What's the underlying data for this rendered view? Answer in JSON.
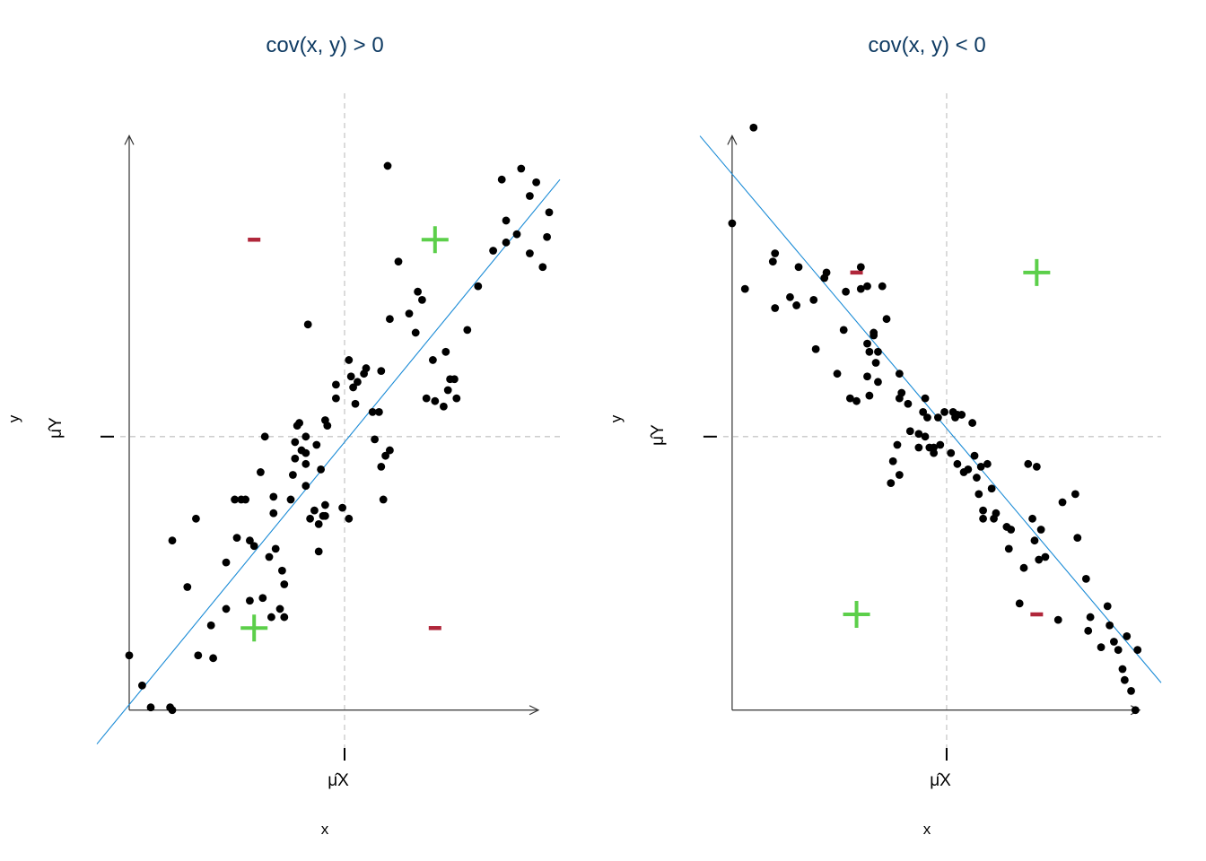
{
  "colors": {
    "title": "#0f3b63",
    "points": "#000000",
    "fit_line": "#1a8bd6",
    "guides": "#c8c8c8",
    "plus": "#5ccf4a",
    "minus": "#b0263a"
  },
  "chart_data": [
    {
      "type": "scatter",
      "title": "cov(x, y) > 0",
      "xlabel": "x",
      "ylabel": "y",
      "x_tick_label": "μ̂X",
      "y_tick_label": "μ̂Y",
      "xlim": [
        -0.1,
        2.0
      ],
      "ylim": [
        -0.05,
        2.18
      ],
      "x_mean": 1.0,
      "y_mean": 1.0,
      "grid": false,
      "fit_line": {
        "intercept": 0.02,
        "slope": 0.96
      },
      "quadrant_signs": {
        "upper_left": "-",
        "upper_right": "+",
        "lower_left": "+",
        "lower_right": "-"
      },
      "points": [
        [
          0.0,
          0.2
        ],
        [
          0.06,
          0.09
        ],
        [
          0.1,
          0.01
        ],
        [
          0.19,
          0.01
        ],
        [
          0.2,
          0.0
        ],
        [
          0.2,
          0.62
        ],
        [
          0.27,
          0.45
        ],
        [
          0.31,
          0.7
        ],
        [
          0.32,
          0.2
        ],
        [
          0.38,
          0.31
        ],
        [
          0.39,
          0.19
        ],
        [
          0.45,
          0.37
        ],
        [
          0.45,
          0.54
        ],
        [
          0.49,
          0.77
        ],
        [
          0.5,
          0.63
        ],
        [
          0.52,
          0.77
        ],
        [
          0.54,
          0.77
        ],
        [
          0.56,
          0.4
        ],
        [
          0.56,
          0.62
        ],
        [
          0.58,
          0.6
        ],
        [
          0.61,
          0.87
        ],
        [
          0.62,
          0.41
        ],
        [
          0.63,
          1.0
        ],
        [
          0.65,
          0.56
        ],
        [
          0.66,
          0.34
        ],
        [
          0.67,
          0.72
        ],
        [
          0.67,
          0.78
        ],
        [
          0.68,
          0.59
        ],
        [
          0.71,
          0.51
        ],
        [
          0.72,
          0.46
        ],
        [
          0.7,
          0.37
        ],
        [
          0.72,
          0.34
        ],
        [
          0.75,
          0.77
        ],
        [
          0.76,
          0.86
        ],
        [
          0.77,
          0.92
        ],
        [
          0.77,
          0.98
        ],
        [
          0.78,
          1.04
        ],
        [
          0.79,
          1.05
        ],
        [
          0.8,
          0.95
        ],
        [
          0.82,
          1.0
        ],
        [
          0.82,
          0.82
        ],
        [
          0.82,
          0.94
        ],
        [
          0.82,
          0.9
        ],
        [
          0.83,
          1.41
        ],
        [
          0.84,
          0.7
        ],
        [
          0.86,
          0.73
        ],
        [
          0.87,
          0.97
        ],
        [
          0.88,
          0.58
        ],
        [
          0.88,
          0.68
        ],
        [
          0.91,
          0.75
        ],
        [
          0.9,
          0.71
        ],
        [
          0.91,
          0.71
        ],
        [
          0.89,
          0.88
        ],
        [
          0.91,
          1.06
        ],
        [
          0.92,
          1.04
        ],
        [
          0.96,
          1.14
        ],
        [
          0.96,
          1.19
        ],
        [
          0.99,
          0.74
        ],
        [
          1.02,
          0.7
        ],
        [
          1.02,
          1.28
        ],
        [
          1.03,
          1.22
        ],
        [
          1.04,
          1.18
        ],
        [
          1.05,
          1.12
        ],
        [
          1.06,
          1.2
        ],
        [
          1.09,
          1.23
        ],
        [
          1.1,
          1.25
        ],
        [
          1.13,
          1.09
        ],
        [
          1.14,
          0.99
        ],
        [
          1.16,
          1.09
        ],
        [
          1.17,
          1.24
        ],
        [
          1.17,
          0.89
        ],
        [
          1.18,
          0.77
        ],
        [
          1.19,
          0.93
        ],
        [
          1.2,
          1.99
        ],
        [
          1.21,
          1.43
        ],
        [
          1.21,
          0.95
        ],
        [
          1.25,
          1.64
        ],
        [
          1.3,
          1.45
        ],
        [
          1.33,
          1.38
        ],
        [
          1.36,
          1.5
        ],
        [
          1.34,
          1.53
        ],
        [
          1.38,
          1.14
        ],
        [
          1.41,
          1.28
        ],
        [
          1.42,
          1.13
        ],
        [
          1.46,
          1.11
        ],
        [
          1.47,
          1.31
        ],
        [
          1.48,
          1.17
        ],
        [
          1.49,
          1.21
        ],
        [
          1.51,
          1.21
        ],
        [
          1.52,
          1.14
        ],
        [
          1.57,
          1.39
        ],
        [
          1.62,
          1.55
        ],
        [
          1.69,
          1.68
        ],
        [
          1.75,
          1.71
        ],
        [
          1.73,
          1.94
        ],
        [
          1.75,
          1.79
        ],
        [
          1.8,
          1.74
        ],
        [
          1.82,
          1.98
        ],
        [
          1.86,
          1.67
        ],
        [
          1.86,
          1.88
        ],
        [
          1.89,
          1.93
        ],
        [
          1.92,
          1.62
        ],
        [
          1.94,
          1.73
        ],
        [
          1.95,
          1.82
        ]
      ]
    },
    {
      "type": "scatter",
      "title": "cov(x, y) < 0",
      "xlabel": "x",
      "ylabel": "y",
      "x_tick_label": "μ̂X",
      "y_tick_label": "μ̂Y",
      "xlim": [
        -0.1,
        2.0
      ],
      "ylim": [
        -0.05,
        2.18
      ],
      "x_mean": 1.0,
      "y_mean": 1.0,
      "grid": false,
      "fit_line": {
        "intercept": 1.96,
        "slope": -0.93
      },
      "quadrant_signs": {
        "upper_left": "-",
        "upper_right": "+",
        "lower_left": "+",
        "lower_right": "-"
      },
      "points": [
        [
          0.0,
          1.78
        ],
        [
          0.06,
          1.54
        ],
        [
          0.1,
          2.13
        ],
        [
          0.19,
          1.64
        ],
        [
          0.2,
          1.67
        ],
        [
          0.2,
          1.47
        ],
        [
          0.27,
          1.51
        ],
        [
          0.31,
          1.62
        ],
        [
          0.3,
          1.48
        ],
        [
          0.38,
          1.5
        ],
        [
          0.39,
          1.32
        ],
        [
          0.43,
          1.58
        ],
        [
          0.44,
          1.6
        ],
        [
          0.49,
          1.23
        ],
        [
          0.53,
          1.53
        ],
        [
          0.52,
          1.39
        ],
        [
          0.55,
          1.14
        ],
        [
          0.58,
          1.13
        ],
        [
          0.6,
          1.54
        ],
        [
          0.6,
          1.62
        ],
        [
          0.63,
          1.55
        ],
        [
          0.63,
          1.34
        ],
        [
          0.63,
          1.22
        ],
        [
          0.64,
          1.31
        ],
        [
          0.64,
          1.15
        ],
        [
          0.66,
          1.37
        ],
        [
          0.66,
          1.38
        ],
        [
          0.67,
          1.27
        ],
        [
          0.68,
          1.2
        ],
        [
          0.68,
          1.31
        ],
        [
          0.7,
          1.55
        ],
        [
          0.72,
          1.43
        ],
        [
          0.74,
          0.83
        ],
        [
          0.75,
          0.91
        ],
        [
          0.77,
          0.97
        ],
        [
          0.78,
          0.86
        ],
        [
          0.78,
          1.14
        ],
        [
          0.79,
          1.16
        ],
        [
          0.78,
          1.23
        ],
        [
          0.82,
          1.12
        ],
        [
          0.83,
          1.02
        ],
        [
          0.87,
          1.01
        ],
        [
          0.87,
          0.96
        ],
        [
          0.89,
          1.09
        ],
        [
          0.9,
          1.14
        ],
        [
          0.9,
          1.0
        ],
        [
          0.91,
          1.07
        ],
        [
          0.92,
          0.96
        ],
        [
          0.94,
          0.96
        ],
        [
          0.94,
          0.94
        ],
        [
          0.96,
          1.07
        ],
        [
          0.97,
          0.97
        ],
        [
          0.99,
          1.09
        ],
        [
          1.02,
          0.94
        ],
        [
          1.03,
          1.09
        ],
        [
          1.04,
          1.07
        ],
        [
          1.05,
          1.08
        ],
        [
          1.05,
          0.9
        ],
        [
          1.07,
          1.08
        ],
        [
          1.08,
          0.87
        ],
        [
          1.1,
          0.88
        ],
        [
          1.12,
          1.05
        ],
        [
          1.13,
          0.93
        ],
        [
          1.14,
          0.85
        ],
        [
          1.15,
          0.79
        ],
        [
          1.16,
          0.89
        ],
        [
          1.17,
          0.7
        ],
        [
          1.17,
          0.73
        ],
        [
          1.19,
          0.9
        ],
        [
          1.21,
          0.81
        ],
        [
          1.22,
          0.7
        ],
        [
          1.23,
          0.72
        ],
        [
          1.28,
          0.67
        ],
        [
          1.29,
          0.59
        ],
        [
          1.3,
          0.66
        ],
        [
          1.34,
          0.39
        ],
        [
          1.36,
          0.52
        ],
        [
          1.38,
          0.9
        ],
        [
          1.4,
          0.7
        ],
        [
          1.41,
          0.62
        ],
        [
          1.42,
          0.89
        ],
        [
          1.43,
          0.55
        ],
        [
          1.44,
          0.66
        ],
        [
          1.46,
          0.56
        ],
        [
          1.52,
          0.33
        ],
        [
          1.54,
          0.76
        ],
        [
          1.6,
          0.79
        ],
        [
          1.61,
          0.63
        ],
        [
          1.65,
          0.48
        ],
        [
          1.66,
          0.29
        ],
        [
          1.67,
          0.34
        ],
        [
          1.72,
          0.23
        ],
        [
          1.75,
          0.38
        ],
        [
          1.76,
          0.31
        ],
        [
          1.78,
          0.25
        ],
        [
          1.8,
          0.22
        ],
        [
          1.82,
          0.15
        ],
        [
          1.83,
          0.11
        ],
        [
          1.84,
          0.27
        ],
        [
          1.86,
          0.07
        ],
        [
          1.88,
          0.0
        ],
        [
          1.89,
          0.22
        ]
      ]
    }
  ]
}
